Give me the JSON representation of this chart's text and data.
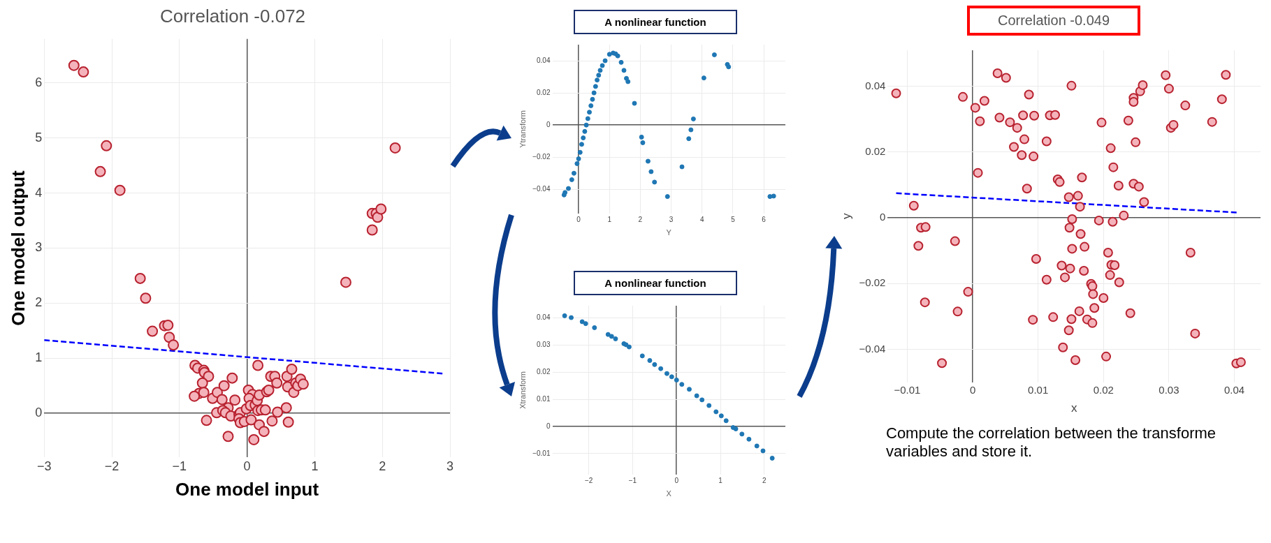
{
  "chart_data": [
    {
      "type": "scatter",
      "title": "Correlation -0.072",
      "xlabel": "One model input",
      "ylabel": "One model output",
      "xlim": [
        -3,
        3
      ],
      "ylim": [
        -0.8,
        6.8
      ],
      "xticks": [
        {
          "value": -3,
          "label": "−3"
        },
        {
          "value": -2,
          "label": "−2"
        },
        {
          "value": -1,
          "label": "−1"
        },
        0,
        1,
        2,
        3
      ],
      "yticks": [
        0,
        1,
        2,
        3,
        4,
        5,
        6
      ],
      "grid": true,
      "marker": "circle",
      "series": [
        {
          "color": "#f4b3ba",
          "x": [
            -2.56,
            -2.42,
            -2.08,
            -2.17,
            -1.88,
            -1.58,
            -1.5,
            -1.4,
            -1.22,
            -1.17,
            -1.15,
            -1.09,
            2.19,
            1.85,
            1.91,
            1.93,
            1.98,
            1.85,
            1.46,
            -0.77,
            -0.73,
            -0.64,
            -0.63,
            -0.57,
            -0.66,
            -0.71,
            -0.64,
            -0.78,
            -0.51,
            -0.44,
            -0.34,
            -0.37,
            -0.22,
            -0.18,
            -0.28,
            -0.45,
            -0.36,
            -0.32,
            -0.24,
            -0.6,
            -0.28,
            -0.12,
            -0.1,
            -0.12,
            -0.1,
            -0.04,
            -0.01,
            0.02,
            0.08,
            0.03,
            0.05,
            0.06,
            0.12,
            0.15,
            0.18,
            0.16,
            0.21,
            0.27,
            0.18,
            0.25,
            0.1,
            0.16,
            0.29,
            0.32,
            0.35,
            0.41,
            0.44,
            0.37,
            0.45,
            0.58,
            0.61,
            0.59,
            0.66,
            0.6,
            0.69,
            0.72,
            0.75,
            0.79,
            0.83
          ],
          "values": [
            6.32,
            6.2,
            4.86,
            4.39,
            4.05,
            2.45,
            2.09,
            1.49,
            1.59,
            1.6,
            1.38,
            1.24,
            4.82,
            3.63,
            3.63,
            3.56,
            3.71,
            3.33,
            2.38,
            0.87,
            0.82,
            0.78,
            0.74,
            0.67,
            0.55,
            0.36,
            0.38,
            0.31,
            0.27,
            0.38,
            0.5,
            0.25,
            0.64,
            0.24,
            0.1,
            0.01,
            0.05,
            0.01,
            -0.05,
            -0.13,
            -0.42,
            -0.02,
            0.01,
            -0.1,
            -0.17,
            -0.15,
            0.08,
            0.42,
            0.34,
            0.27,
            0.14,
            -0.12,
            0.15,
            0.23,
            0.33,
            0.05,
            0.06,
            0.06,
            -0.21,
            -0.33,
            -0.48,
            0.87,
            0.39,
            0.42,
            0.67,
            0.67,
            0.55,
            -0.14,
            0.02,
            0.1,
            -0.16,
            0.67,
            0.8,
            0.48,
            0.38,
            0.55,
            0.5,
            0.62,
            0.53
          ]
        },
        {
          "type": "line",
          "color": "#0000ff",
          "line_style": "dashed",
          "marker": "none",
          "x": [
            -3,
            2.9
          ],
          "values": [
            1.33,
            0.72
          ]
        }
      ]
    },
    {
      "type": "scatter",
      "xlabel": "Y",
      "ylabel": "Ytransform",
      "xlim": [
        -0.85,
        6.7
      ],
      "ylim": [
        -0.055,
        0.05
      ],
      "xticks": [
        0,
        1,
        2,
        3,
        4,
        5,
        6
      ],
      "yticks": [
        {
          "value": -0.04,
          "label": "−0.04"
        },
        {
          "value": -0.02,
          "label": "−0.02"
        },
        0,
        0.02,
        0.04
      ],
      "grid": true,
      "marker": "circle",
      "annotations": [
        "A nonlinear function"
      ],
      "series": [
        {
          "color": "#1f77b4",
          "x": [
            -0.47,
            -0.44,
            -0.33,
            -0.22,
            -0.15,
            -0.05,
            0,
            0.05,
            0.1,
            0.15,
            0.2,
            0.25,
            0.3,
            0.35,
            0.4,
            0.45,
            0.5,
            0.55,
            0.6,
            0.65,
            0.7,
            0.77,
            0.86,
            1,
            1.12,
            1.2,
            1.27,
            1.38,
            1.47,
            1.55,
            1.6,
            1.81,
            2.04,
            2.08,
            2.25,
            2.35,
            2.46,
            2.88,
            3.35,
            3.57,
            3.64,
            3.72,
            4.06,
            4.4,
            4.82,
            4.86,
            6.2,
            6.32
          ],
          "values": [
            -0.0435,
            -0.042,
            -0.0395,
            -0.034,
            -0.03,
            -0.024,
            -0.021,
            -0.017,
            -0.012,
            -0.008,
            -0.004,
            0,
            0.004,
            0.008,
            0.012,
            0.016,
            0.02,
            0.024,
            0.028,
            0.031,
            0.034,
            0.037,
            0.04,
            0.044,
            0.0448,
            0.0443,
            0.043,
            0.039,
            0.034,
            0.029,
            0.027,
            0.0135,
            -0.0075,
            -0.011,
            -0.0225,
            -0.029,
            -0.0355,
            -0.0445,
            -0.026,
            -0.0085,
            -0.003,
            0.0038,
            0.0293,
            0.0437,
            0.0377,
            0.0362,
            -0.0445,
            -0.0442
          ]
        }
      ]
    },
    {
      "type": "scatter",
      "xlabel": "X",
      "ylabel": "Xtransform",
      "xlim": [
        -2.83,
        2.48
      ],
      "ylim": [
        -0.0177,
        0.0445
      ],
      "xticks": [
        {
          "value": -2,
          "label": "−2"
        },
        {
          "value": -1,
          "label": "−1"
        },
        0,
        1,
        2
      ],
      "yticks": [
        {
          "value": -0.01,
          "label": "−0.01"
        },
        0,
        0.01,
        0.02,
        0.03,
        0.04
      ],
      "grid": true,
      "marker": "circle",
      "annotations": [
        "A nonlinear function"
      ],
      "series": [
        {
          "color": "#1f77b4",
          "x": [
            -2.55,
            -2.4,
            -2.15,
            -2.07,
            -1.87,
            -1.56,
            -1.48,
            -1.39,
            -1.2,
            -1.15,
            -1.08,
            -0.78,
            -0.61,
            -0.5,
            -0.36,
            -0.22,
            -0.11,
            0,
            0.12,
            0.29,
            0.46,
            0.58,
            0.74,
            0.9,
            1.02,
            1.13,
            1.29,
            1.35,
            1.49,
            1.65,
            1.83,
            1.97,
            2.18
          ],
          "values": [
            0.0408,
            0.0401,
            0.0386,
            0.0379,
            0.0364,
            0.0339,
            0.0332,
            0.0323,
            0.0305,
            0.0301,
            0.0293,
            0.026,
            0.0243,
            0.0228,
            0.0213,
            0.0195,
            0.0183,
            0.0171,
            0.0155,
            0.0137,
            0.0113,
            0.0098,
            0.0077,
            0.0054,
            0.0039,
            0.0021,
            -0.0004,
            -0.0009,
            -0.0028,
            -0.0047,
            -0.0072,
            -0.009,
            -0.0117
          ]
        }
      ]
    },
    {
      "type": "scatter",
      "title": "Correlation -0.049",
      "xlabel": "x",
      "ylabel": "y",
      "xlim": [
        -0.013,
        0.044
      ],
      "ylim": [
        -0.05,
        0.051
      ],
      "xticks": [
        {
          "value": -0.01,
          "label": "−0.01"
        },
        0,
        0.01,
        0.02,
        0.03,
        0.04
      ],
      "yticks": [
        {
          "value": -0.04,
          "label": "−0.04"
        },
        {
          "value": -0.02,
          "label": "−0.02"
        },
        0,
        0.02,
        0.04
      ],
      "grid": true,
      "marker": "circle",
      "annotations": [
        "Compute the correlation between the transforme variables and store it."
      ],
      "series": [
        {
          "color": "#f4b3ba",
          "x": [
            -0.0117,
            -0.0015,
            0.0004,
            0.0018,
            0.0011,
            0.0038,
            0.0051,
            0.0041,
            0.0057,
            0.0068,
            0.0077,
            0.0094,
            0.0086,
            0.0079,
            0.0063,
            0.0075,
            0.0093,
            0.0113,
            0.0118,
            0.0126,
            0.0151,
            0.0008,
            0.0083,
            0.013,
            0.0133,
            0.0167,
            0.0147,
            0.0161,
            0.0164,
            0.0152,
            0.0148,
            0.0165,
            0.0152,
            0.0171,
            0.0197,
            0.0211,
            0.0215,
            0.0223,
            0.0193,
            0.0214,
            0.0231,
            0.0238,
            0.0249,
            0.0246,
            0.0254,
            0.0262,
            0.0246,
            0.0246,
            0.0256,
            0.026,
            0.0295,
            0.03,
            0.0325,
            0.0303,
            0.0307,
            0.0366,
            0.0381,
            0.0387,
            0.0333,
            0.034,
            0.0403,
            0.041,
            -0.009,
            -0.0079,
            -0.0072,
            -0.0083,
            -0.0027,
            -0.0073,
            -0.0007,
            -0.0023,
            -0.0047,
            0.0097,
            0.0113,
            0.0136,
            0.0149,
            0.0141,
            0.017,
            0.0181,
            0.0183,
            0.0184,
            0.0207,
            0.0212,
            0.0217,
            0.021,
            0.0224,
            0.02,
            0.0186,
            0.0163,
            0.0175,
            0.0183,
            0.0151,
            0.0147,
            0.0123,
            0.0092,
            0.0138,
            0.0157,
            0.0204,
            0.0241
          ],
          "values": [
            0.0379,
            0.0368,
            0.0335,
            0.0356,
            0.0294,
            0.044,
            0.0426,
            0.0305,
            0.0291,
            0.0274,
            0.0312,
            0.0311,
            0.0375,
            0.0239,
            0.0216,
            0.0191,
            0.0187,
            0.0233,
            0.0312,
            0.0313,
            0.0402,
            0.0137,
            0.0089,
            0.0117,
            0.0109,
            0.0123,
            0.0063,
            0.0067,
            0.0034,
            -0.0004,
            -0.003,
            -0.0049,
            -0.0094,
            -0.0088,
            0.029,
            0.0212,
            0.0154,
            0.0098,
            -0.0008,
            -0.0012,
            0.0007,
            0.0296,
            0.023,
            0.0104,
            0.0095,
            0.0048,
            0.0365,
            0.0353,
            0.0385,
            0.0404,
            0.0434,
            0.0393,
            0.0342,
            0.0274,
            0.0283,
            0.0292,
            0.0361,
            0.0435,
            -0.0106,
            -0.0352,
            -0.0443,
            -0.0439,
            0.0037,
            -0.003,
            -0.0028,
            -0.0085,
            -0.0071,
            -0.0257,
            -0.0225,
            -0.0285,
            -0.0442,
            -0.0125,
            -0.0188,
            -0.0145,
            -0.0154,
            -0.0181,
            -0.0161,
            -0.0201,
            -0.0208,
            -0.0232,
            -0.0106,
            -0.0143,
            -0.0144,
            -0.0174,
            -0.0196,
            -0.0244,
            -0.0274,
            -0.0284,
            -0.0309,
            -0.032,
            -0.0308,
            -0.0342,
            -0.0302,
            -0.031,
            -0.0394,
            -0.0433,
            -0.0422,
            -0.029
          ]
        },
        {
          "type": "line",
          "color": "#0000ff",
          "line_style": "dashed",
          "marker": "none",
          "x": [
            -0.0117,
            0.0406
          ],
          "values": [
            0.0075,
            0.0016
          ]
        }
      ]
    }
  ]
}
